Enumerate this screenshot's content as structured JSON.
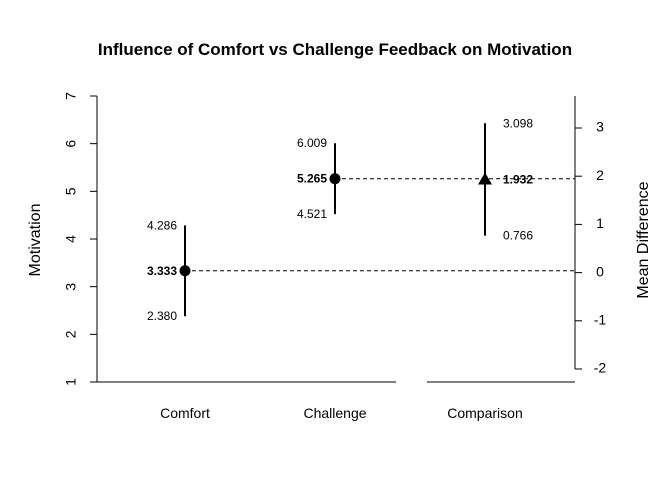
{
  "chart_data": {
    "type": "scatter",
    "title": "Influence of Comfort vs Challenge Feedback on Motivation",
    "xlabel": "",
    "ylabel": "Motivation",
    "ylabel_right": "Mean Difference",
    "categories": [
      "Comfort",
      "Challenge",
      "Comparison"
    ],
    "ylim": [
      1,
      7
    ],
    "yticks": [
      "1",
      "2",
      "3",
      "4",
      "5",
      "6",
      "7"
    ],
    "ylim_right": [
      -2,
      3
    ],
    "yticks_right": [
      "-2",
      "-1",
      "0",
      "1",
      "2",
      "3"
    ],
    "groups": [
      {
        "name": "Comfort",
        "mean": 3.333,
        "lower": 2.38,
        "upper": 4.286,
        "mean_label": "3.333",
        "lower_label": "2.380",
        "upper_label": "4.286",
        "marker": "circle"
      },
      {
        "name": "Challenge",
        "mean": 5.265,
        "lower": 4.521,
        "upper": 6.009,
        "mean_label": "5.265",
        "lower_label": "4.521",
        "upper_label": "6.009",
        "marker": "circle"
      }
    ],
    "comparison": {
      "name": "Comparison",
      "difference": 1.932,
      "lower": 0.766,
      "upper": 3.098,
      "mean_label": "1.932",
      "lower_label": "0.766",
      "upper_label": "3.098",
      "marker": "triangle"
    },
    "reference_lines": "dashed",
    "grid": false
  }
}
